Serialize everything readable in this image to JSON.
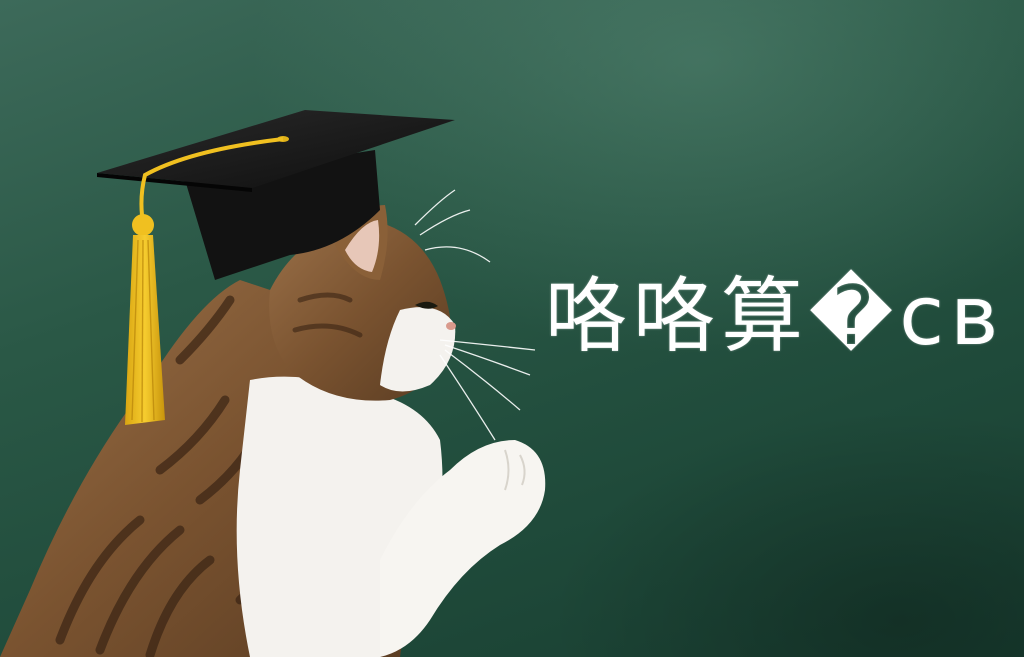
{
  "image": {
    "caption_text": "咯咯算�св ？"
  },
  "colors": {
    "chalkboard": "#245343",
    "chalk_text": "#ffffff",
    "cap": "#141414",
    "tassel": "#f0c020",
    "fur_brown": "#8a6038",
    "fur_white": "#f4f2ee"
  }
}
